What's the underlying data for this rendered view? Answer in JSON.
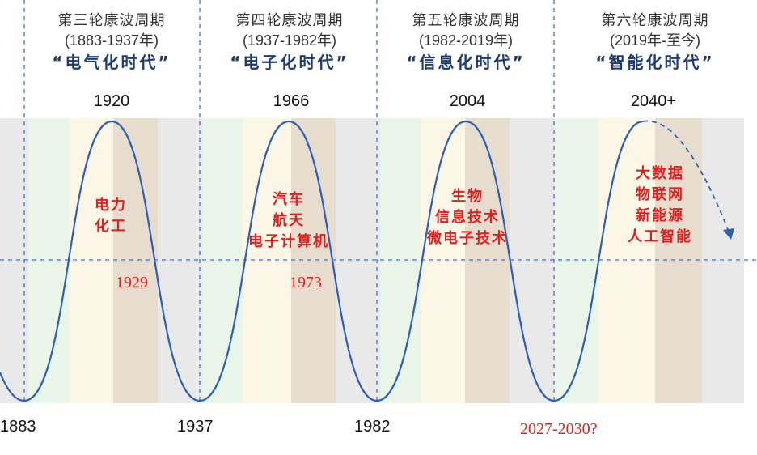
{
  "waves": [
    {
      "name": "第三轮康波周期",
      "period": "(1883-1937年)",
      "era": "“电气化时代”",
      "peak_year": "1920",
      "technologies": [
        "电力",
        "化工"
      ],
      "downturn_year": "1929"
    },
    {
      "name": "第四轮康波周期",
      "period": "(1937-1982年)",
      "era": "“电子化时代”",
      "peak_year": "1966",
      "technologies": [
        "汽车",
        "航天",
        "电子计算机"
      ],
      "downturn_year": "1973"
    },
    {
      "name": "第五轮康波周期",
      "period": "(1982-2019年)",
      "era": "“信息化时代”",
      "peak_year": "2004",
      "technologies": [
        "生物",
        "信息技术",
        "微电子技术"
      ]
    },
    {
      "name": "第六轮康波周期",
      "period": "(2019年-至今)",
      "era": "“智能化时代”",
      "peak_year": "2040+",
      "technologies": [
        "大数据",
        "物联网",
        "新能源",
        "人工智能"
      ]
    }
  ],
  "axis_years": [
    "1883",
    "1937",
    "1982"
  ],
  "forecast_year": "2027-2030?",
  "colors": {
    "gray_band": "#e9e9ea",
    "green_band": "#eaf5ea",
    "cream_band": "#fbf6e6",
    "tan_band": "#e7ddcf",
    "curve": "#2f5fb3",
    "guide": "#4a6fc0",
    "red": "#e02020",
    "header_era": "#1f3b6e"
  }
}
